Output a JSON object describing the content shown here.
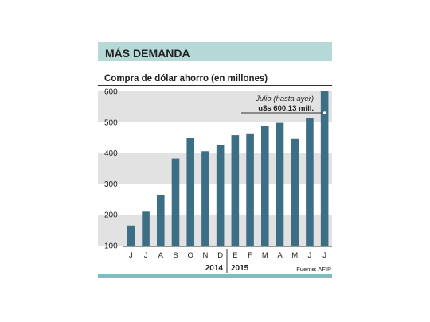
{
  "header": {
    "title": "MÁS DEMANDA"
  },
  "chart_data": {
    "type": "bar",
    "title": "MÁS DEMANDA",
    "subtitle": "Compra de dólar ahorro (en millones)",
    "xlabel": "",
    "ylabel": "",
    "categories": [
      "J",
      "J",
      "A",
      "S",
      "O",
      "N",
      "D",
      "E",
      "F",
      "M",
      "A",
      "M",
      "J",
      "J"
    ],
    "values": [
      165,
      210,
      265,
      382,
      449,
      406,
      426,
      458,
      464,
      489,
      498,
      446,
      514,
      600.13
    ],
    "ylim": [
      100,
      600
    ],
    "yticks": [
      100,
      200,
      300,
      400,
      500,
      600
    ],
    "year_labels": [
      "2014",
      "2015"
    ],
    "annotation": {
      "line1": "Julio (hasta ayer)",
      "line2": "u$s 600,13 mill."
    },
    "source": "Fuente: AFIP",
    "grid": "alternating bands",
    "colors": {
      "bar": "#3c6e85",
      "header_bg": "#b5d9d6",
      "band": "#e2e2e2",
      "accent": "#7fbcbd",
      "text": "#222222"
    }
  }
}
